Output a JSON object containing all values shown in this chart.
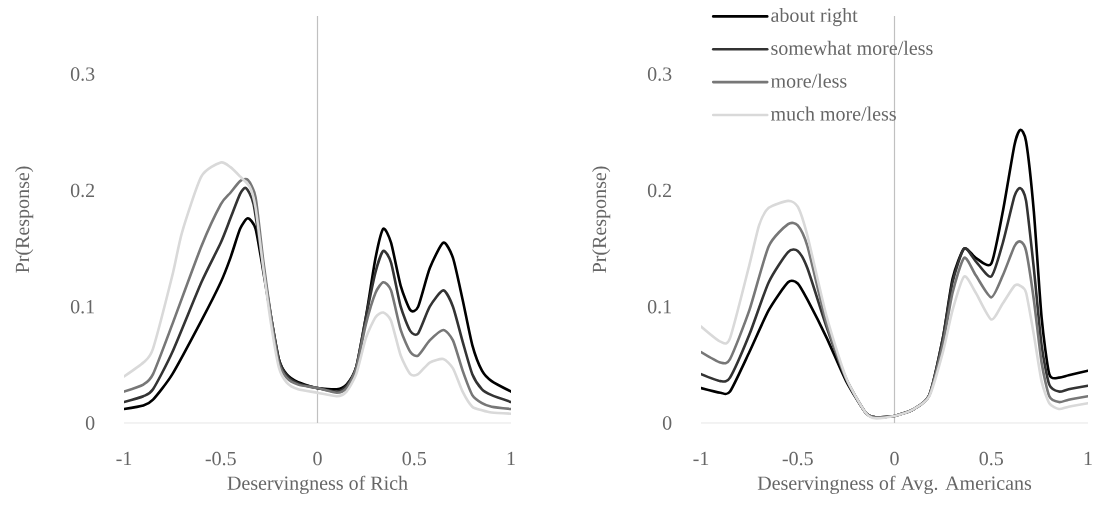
{
  "chart_data": [
    {
      "type": "line",
      "xlabel": "Deservingness of Rich",
      "ylabel": "Pr(Response)",
      "xlim": [
        -1,
        1
      ],
      "ylim": [
        0,
        0.35
      ],
      "xticks": [
        -1,
        -0.5,
        0,
        0.5,
        1
      ],
      "yticks": [
        0,
        0.1,
        0.2,
        0.3
      ],
      "ref_lines": [
        {
          "axis": "x",
          "value": 0,
          "color": "#c0c0c0"
        }
      ],
      "series": [
        {
          "color": "#000000",
          "x": [
            -1,
            -0.9,
            -0.85,
            -0.75,
            -0.6,
            -0.5,
            -0.45,
            -0.4,
            -0.36,
            -0.32,
            -0.28,
            -0.24,
            -0.2,
            -0.16,
            -0.1,
            0,
            0.1,
            0.15,
            0.2,
            0.25,
            0.3,
            0.34,
            0.38,
            0.43,
            0.48,
            0.52,
            0.58,
            0.65,
            0.7,
            0.75,
            0.8,
            0.85,
            0.9,
            1
          ],
          "values": [
            0.012,
            0.015,
            0.02,
            0.042,
            0.088,
            0.121,
            0.142,
            0.167,
            0.176,
            0.167,
            0.13,
            0.091,
            0.055,
            0.042,
            0.035,
            0.03,
            0.029,
            0.033,
            0.048,
            0.091,
            0.142,
            0.167,
            0.155,
            0.118,
            0.097,
            0.1,
            0.133,
            0.155,
            0.142,
            0.106,
            0.067,
            0.045,
            0.036,
            0.027
          ]
        },
        {
          "color": "#333333",
          "x": [
            -1,
            -0.9,
            -0.85,
            -0.75,
            -0.6,
            -0.5,
            -0.45,
            -0.4,
            -0.37,
            -0.33,
            -0.28,
            -0.24,
            -0.2,
            -0.16,
            -0.1,
            0,
            0.1,
            0.15,
            0.2,
            0.25,
            0.3,
            0.34,
            0.38,
            0.43,
            0.48,
            0.52,
            0.58,
            0.65,
            0.7,
            0.75,
            0.8,
            0.85,
            0.9,
            1
          ],
          "values": [
            0.018,
            0.023,
            0.029,
            0.061,
            0.121,
            0.155,
            0.176,
            0.197,
            0.202,
            0.188,
            0.133,
            0.091,
            0.055,
            0.041,
            0.034,
            0.03,
            0.027,
            0.032,
            0.048,
            0.091,
            0.13,
            0.148,
            0.138,
            0.1,
            0.079,
            0.077,
            0.1,
            0.114,
            0.1,
            0.07,
            0.042,
            0.029,
            0.024,
            0.018
          ]
        },
        {
          "color": "#777777",
          "x": [
            -1,
            -0.9,
            -0.85,
            -0.75,
            -0.6,
            -0.5,
            -0.45,
            -0.4,
            -0.36,
            -0.32,
            -0.28,
            -0.24,
            -0.2,
            -0.16,
            -0.1,
            0,
            0.1,
            0.15,
            0.2,
            0.25,
            0.3,
            0.34,
            0.38,
            0.43,
            0.48,
            0.52,
            0.58,
            0.65,
            0.7,
            0.75,
            0.8,
            0.85,
            0.9,
            1
          ],
          "values": [
            0.027,
            0.033,
            0.042,
            0.085,
            0.152,
            0.188,
            0.198,
            0.208,
            0.209,
            0.194,
            0.139,
            0.091,
            0.052,
            0.039,
            0.033,
            0.03,
            0.026,
            0.03,
            0.047,
            0.085,
            0.112,
            0.121,
            0.114,
            0.08,
            0.061,
            0.058,
            0.071,
            0.08,
            0.071,
            0.045,
            0.024,
            0.017,
            0.014,
            0.012
          ]
        },
        {
          "color": "#d9d9d9",
          "x": [
            -1,
            -0.9,
            -0.85,
            -0.75,
            -0.7,
            -0.6,
            -0.5,
            -0.45,
            -0.4,
            -0.35,
            -0.32,
            -0.28,
            -0.24,
            -0.2,
            -0.16,
            -0.1,
            0,
            0.1,
            0.15,
            0.2,
            0.25,
            0.3,
            0.34,
            0.38,
            0.43,
            0.48,
            0.52,
            0.58,
            0.65,
            0.7,
            0.75,
            0.8,
            0.85,
            0.9,
            1
          ],
          "values": [
            0.04,
            0.052,
            0.064,
            0.127,
            0.164,
            0.212,
            0.224,
            0.22,
            0.212,
            0.203,
            0.185,
            0.133,
            0.085,
            0.048,
            0.035,
            0.029,
            0.026,
            0.023,
            0.027,
            0.042,
            0.073,
            0.091,
            0.095,
            0.088,
            0.058,
            0.042,
            0.042,
            0.052,
            0.055,
            0.047,
            0.027,
            0.014,
            0.011,
            0.009,
            0.008
          ]
        }
      ]
    },
    {
      "type": "line",
      "xlabel": "Deservingness of Avg. Americans",
      "ylabel": "Pr(Response)",
      "xlim": [
        -1,
        1
      ],
      "ylim": [
        0,
        0.35
      ],
      "xticks": [
        -1,
        -0.5,
        0,
        0.5,
        1
      ],
      "yticks": [
        0,
        0.1,
        0.2,
        0.3
      ],
      "legend": "top left",
      "ref_lines": [
        {
          "axis": "x",
          "value": 0,
          "color": "#c0c0c0"
        }
      ],
      "series": [
        {
          "name": "about right",
          "color": "#000000",
          "x": [
            -1,
            -0.9,
            -0.85,
            -0.75,
            -0.65,
            -0.55,
            -0.5,
            -0.45,
            -0.35,
            -0.25,
            -0.15,
            -0.1,
            0,
            0.1,
            0.18,
            0.25,
            0.3,
            0.36,
            0.42,
            0.5,
            0.56,
            0.62,
            0.65,
            0.68,
            0.72,
            0.76,
            0.8,
            0.85,
            0.9,
            1
          ],
          "values": [
            0.03,
            0.026,
            0.027,
            0.061,
            0.097,
            0.121,
            0.12,
            0.106,
            0.073,
            0.036,
            0.009,
            0.005,
            0.006,
            0.012,
            0.024,
            0.073,
            0.124,
            0.15,
            0.142,
            0.137,
            0.182,
            0.239,
            0.252,
            0.242,
            0.182,
            0.091,
            0.042,
            0.039,
            0.041,
            0.045
          ]
        },
        {
          "name": "somewhat more/less",
          "color": "#333333",
          "x": [
            -1,
            -0.9,
            -0.85,
            -0.75,
            -0.65,
            -0.55,
            -0.5,
            -0.45,
            -0.35,
            -0.25,
            -0.15,
            -0.1,
            0,
            0.1,
            0.18,
            0.25,
            0.3,
            0.36,
            0.42,
            0.5,
            0.56,
            0.62,
            0.65,
            0.68,
            0.72,
            0.76,
            0.8,
            0.85,
            0.9,
            1
          ],
          "values": [
            0.042,
            0.036,
            0.039,
            0.076,
            0.121,
            0.147,
            0.148,
            0.133,
            0.082,
            0.038,
            0.009,
            0.005,
            0.006,
            0.012,
            0.024,
            0.073,
            0.121,
            0.15,
            0.139,
            0.126,
            0.155,
            0.195,
            0.202,
            0.191,
            0.133,
            0.067,
            0.033,
            0.027,
            0.029,
            0.032
          ]
        },
        {
          "name": "more/less",
          "color": "#777777",
          "x": [
            -1,
            -0.9,
            -0.85,
            -0.75,
            -0.65,
            -0.55,
            -0.5,
            -0.45,
            -0.35,
            -0.25,
            -0.15,
            -0.1,
            0,
            0.1,
            0.18,
            0.25,
            0.3,
            0.36,
            0.42,
            0.5,
            0.56,
            0.62,
            0.65,
            0.68,
            0.72,
            0.76,
            0.8,
            0.85,
            0.9,
            1
          ],
          "values": [
            0.061,
            0.052,
            0.055,
            0.097,
            0.152,
            0.171,
            0.17,
            0.152,
            0.085,
            0.038,
            0.009,
            0.005,
            0.006,
            0.012,
            0.024,
            0.068,
            0.112,
            0.142,
            0.127,
            0.108,
            0.127,
            0.152,
            0.156,
            0.148,
            0.106,
            0.052,
            0.023,
            0.018,
            0.02,
            0.023
          ]
        },
        {
          "name": "much more/less",
          "color": "#d9d9d9",
          "x": [
            -1,
            -0.9,
            -0.85,
            -0.75,
            -0.7,
            -0.65,
            -0.55,
            -0.5,
            -0.45,
            -0.35,
            -0.25,
            -0.15,
            -0.1,
            0,
            0.1,
            0.18,
            0.25,
            0.3,
            0.36,
            0.42,
            0.5,
            0.56,
            0.62,
            0.65,
            0.68,
            0.72,
            0.76,
            0.8,
            0.85,
            0.9,
            1
          ],
          "values": [
            0.083,
            0.07,
            0.073,
            0.136,
            0.17,
            0.185,
            0.191,
            0.186,
            0.161,
            0.091,
            0.039,
            0.009,
            0.004,
            0.006,
            0.012,
            0.023,
            0.061,
            0.097,
            0.126,
            0.112,
            0.089,
            0.103,
            0.118,
            0.118,
            0.112,
            0.076,
            0.036,
            0.017,
            0.012,
            0.014,
            0.017
          ]
        }
      ]
    }
  ]
}
